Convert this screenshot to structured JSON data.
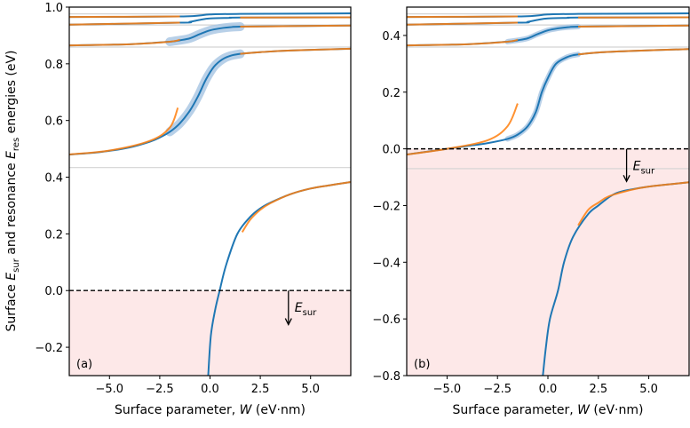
{
  "figure": {
    "ylabel_parts": [
      "Surface ",
      "E",
      "sur",
      " and resonance ",
      "E",
      "res",
      " energies (eV)"
    ],
    "colors": {
      "blue": "#1f77b4",
      "orange": "#ff7f0e",
      "band": "#a6c4e2",
      "shade": "#fde8e8",
      "grey": "#d3d3d3"
    }
  },
  "chart_data": [
    {
      "type": "line",
      "panel_label": "(a)",
      "xlabel": "Surface parameter, W (eV·nm)",
      "xlabel_parts": [
        "Surface parameter, ",
        "W",
        " (eV·nm)"
      ],
      "xlim": [
        -7,
        7
      ],
      "ylim": [
        -0.3,
        1.0
      ],
      "xticks": [
        -5.0,
        -2.5,
        0.0,
        2.5,
        5.0
      ],
      "xtick_labels": [
        "−5.0",
        "−2.5",
        "0.0",
        "2.5",
        "5.0"
      ],
      "yticks": [
        -0.2,
        0.0,
        0.2,
        0.4,
        0.6,
        0.8,
        1.0
      ],
      "ytick_labels": [
        "−0.2",
        "0.0",
        "0.2",
        "0.4",
        "0.6",
        "0.8",
        "1.0"
      ],
      "shaded_below": 0.0,
      "dashed_line": 0.0,
      "grey_lines": [
        0.976,
        0.937,
        0.859,
        0.434
      ],
      "annotation": {
        "text_parts": [
          "E",
          "sur"
        ],
        "x": 3.9,
        "y_from": 0.0,
        "y_to": -0.12
      },
      "series": [
        {
          "color": "blue",
          "band": false,
          "points": [
            [
              -0.09,
              -0.3
            ],
            [
              0.04,
              -0.16
            ],
            [
              0.25,
              -0.07
            ],
            [
              0.48,
              0
            ],
            [
              0.8,
              0.09
            ],
            [
              1.36,
              0.2
            ],
            [
              2,
              0.26
            ],
            [
              2.5,
              0.29
            ],
            [
              3,
              0.31
            ],
            [
              4,
              0.34
            ],
            [
              5,
              0.36
            ],
            [
              6,
              0.372
            ],
            [
              7,
              0.383
            ]
          ]
        },
        {
          "color": "blue",
          "band": true,
          "points": [
            [
              -7,
              0.48
            ],
            [
              -6,
              0.485
            ],
            [
              -5,
              0.493
            ],
            [
              -4,
              0.505
            ],
            [
              -3,
              0.525
            ],
            [
              -2.5,
              0.54
            ],
            [
              -2,
              0.56
            ],
            [
              -1.5,
              0.59
            ],
            [
              -1,
              0.635
            ],
            [
              -0.6,
              0.685
            ],
            [
              -0.2,
              0.745
            ],
            [
              0.2,
              0.79
            ],
            [
              0.6,
              0.815
            ],
            [
              1,
              0.828
            ],
            [
              1.5,
              0.835
            ],
            [
              2.5,
              0.841
            ],
            [
              4,
              0.847
            ],
            [
              7,
              0.853
            ]
          ]
        },
        {
          "color": "blue",
          "band": true,
          "points": [
            [
              -7,
              0.865
            ],
            [
              -4,
              0.869
            ],
            [
              -2,
              0.878
            ],
            [
              -1.5,
              0.883
            ],
            [
              -1,
              0.89
            ],
            [
              -0.5,
              0.905
            ],
            [
              0,
              0.918
            ],
            [
              0.5,
              0.925
            ],
            [
              1,
              0.929
            ],
            [
              1.5,
              0.931
            ],
            [
              4,
              0.933
            ],
            [
              7,
              0.935
            ]
          ]
        },
        {
          "color": "blue",
          "band": false,
          "points": [
            [
              -7,
              0.938
            ],
            [
              -1.5,
              0.945
            ],
            [
              -1,
              0.948
            ],
            [
              -0.5,
              0.955
            ],
            [
              0,
              0.96
            ],
            [
              1,
              0.962
            ],
            [
              1.5,
              0.963
            ],
            [
              7,
              0.964
            ]
          ]
        },
        {
          "color": "blue",
          "band": false,
          "points": [
            [
              -7,
              0.965
            ],
            [
              -1.5,
              0.967
            ],
            [
              0,
              0.974
            ],
            [
              1.5,
              0.976
            ],
            [
              7,
              0.978
            ]
          ]
        },
        {
          "color": "orange",
          "band": false,
          "points": [
            [
              1.6,
              0.206
            ],
            [
              2,
              0.25
            ],
            [
              2.5,
              0.285
            ],
            [
              3,
              0.308
            ],
            [
              4,
              0.34
            ],
            [
              5,
              0.36
            ],
            [
              6,
              0.372
            ],
            [
              7,
              0.383
            ]
          ]
        },
        {
          "color": "orange",
          "band": false,
          "points": [
            [
              -7,
              0.48
            ],
            [
              -5,
              0.494
            ],
            [
              -3,
              0.528
            ],
            [
              -2,
              0.575
            ],
            [
              -1.6,
              0.645
            ]
          ]
        },
        {
          "color": "orange",
          "band": false,
          "points": [
            [
              1.5,
              0.835
            ],
            [
              2.5,
              0.841
            ],
            [
              4,
              0.847
            ],
            [
              7,
              0.853
            ]
          ]
        },
        {
          "color": "orange",
          "band": false,
          "points": [
            [
              -7,
              0.865
            ],
            [
              -4,
              0.869
            ],
            [
              -2,
              0.878
            ],
            [
              -1.5,
              0.885
            ]
          ]
        },
        {
          "color": "orange",
          "band": false,
          "points": [
            [
              1.5,
              0.931
            ],
            [
              4,
              0.933
            ],
            [
              7,
              0.935
            ]
          ]
        },
        {
          "color": "orange",
          "band": false,
          "points": [
            [
              -7,
              0.938
            ],
            [
              -1.5,
              0.945
            ]
          ]
        },
        {
          "color": "orange",
          "band": false,
          "points": [
            [
              1.5,
              0.963
            ],
            [
              7,
              0.964
            ]
          ]
        },
        {
          "color": "orange",
          "band": false,
          "points": [
            [
              -7,
              0.965
            ],
            [
              -1.5,
              0.967
            ]
          ]
        }
      ]
    },
    {
      "type": "line",
      "panel_label": "(b)",
      "xlabel": "Surface parameter, W (eV·nm)",
      "xlabel_parts": [
        "Surface parameter, ",
        "W",
        " (eV·nm)"
      ],
      "xlim": [
        -7,
        7
      ],
      "ylim": [
        -0.8,
        0.5
      ],
      "xticks": [
        -5.0,
        -2.5,
        0.0,
        2.5,
        5.0
      ],
      "xtick_labels": [
        "−5.0",
        "−2.5",
        "0.0",
        "2.5",
        "5.0"
      ],
      "yticks": [
        -0.8,
        -0.6,
        -0.4,
        -0.2,
        0.0,
        0.2,
        0.4
      ],
      "ytick_labels": [
        "−0.8",
        "−0.6",
        "−0.4",
        "−0.2",
        "0.0",
        "0.2",
        "0.4"
      ],
      "shaded_below": 0.0,
      "dashed_line": 0.0,
      "grey_lines": [
        0.476,
        0.437,
        0.359,
        -0.07
      ],
      "annotation": {
        "text_parts": [
          "E",
          "sur"
        ],
        "x": 3.9,
        "y_from": 0.0,
        "y_to": -0.115
      },
      "series": [
        {
          "color": "blue",
          "band": false,
          "points": [
            [
              -0.25,
              -0.8
            ],
            [
              -0.1,
              -0.7
            ],
            [
              0.1,
              -0.6
            ],
            [
              0.5,
              -0.5
            ],
            [
              0.8,
              -0.4
            ],
            [
              1.25,
              -0.31
            ],
            [
              2,
              -0.23
            ],
            [
              2.5,
              -0.2
            ],
            [
              3,
              -0.172
            ],
            [
              3.4,
              -0.156
            ],
            [
              4,
              -0.145
            ],
            [
              5,
              -0.133
            ],
            [
              7,
              -0.118
            ]
          ]
        },
        {
          "color": "blue",
          "band": true,
          "points": [
            [
              -7,
              -0.02
            ],
            [
              -5,
              0
            ],
            [
              -4,
              0.01
            ],
            [
              -3,
              0.02
            ],
            [
              -2,
              0.035
            ],
            [
              -1.5,
              0.05
            ],
            [
              -1,
              0.08
            ],
            [
              -0.6,
              0.13
            ],
            [
              -0.3,
              0.2
            ],
            [
              0,
              0.25
            ],
            [
              0.4,
              0.3
            ],
            [
              1,
              0.325
            ],
            [
              1.5,
              0.333
            ],
            [
              2.5,
              0.34
            ],
            [
              4,
              0.345
            ],
            [
              7,
              0.352
            ]
          ]
        },
        {
          "color": "blue",
          "band": true,
          "points": [
            [
              -7,
              0.365
            ],
            [
              -4,
              0.369
            ],
            [
              -2,
              0.378
            ],
            [
              -1.5,
              0.383
            ],
            [
              -1,
              0.39
            ],
            [
              -0.5,
              0.405
            ],
            [
              0,
              0.418
            ],
            [
              0.5,
              0.425
            ],
            [
              1,
              0.429
            ],
            [
              1.5,
              0.431
            ],
            [
              4,
              0.433
            ],
            [
              7,
              0.435
            ]
          ]
        },
        {
          "color": "blue",
          "band": false,
          "points": [
            [
              -7,
              0.438
            ],
            [
              -1.5,
              0.445
            ],
            [
              -1,
              0.448
            ],
            [
              -0.5,
              0.455
            ],
            [
              0,
              0.46
            ],
            [
              1,
              0.462
            ],
            [
              1.5,
              0.463
            ],
            [
              7,
              0.464
            ]
          ]
        },
        {
          "color": "blue",
          "band": false,
          "points": [
            [
              -7,
              0.465
            ],
            [
              -1.5,
              0.467
            ],
            [
              0,
              0.474
            ],
            [
              1.5,
              0.476
            ],
            [
              7,
              0.478
            ]
          ]
        },
        {
          "color": "orange",
          "band": false,
          "points": [
            [
              1.5,
              -0.27
            ],
            [
              2,
              -0.215
            ],
            [
              2.5,
              -0.19
            ],
            [
              3,
              -0.168
            ],
            [
              4,
              -0.147
            ],
            [
              5,
              -0.133
            ],
            [
              7,
              -0.118
            ]
          ]
        },
        {
          "color": "orange",
          "band": false,
          "points": [
            [
              -7,
              -0.02
            ],
            [
              -5,
              0
            ],
            [
              -3,
              0.03
            ],
            [
              -2,
              0.08
            ],
            [
              -1.5,
              0.16
            ]
          ]
        },
        {
          "color": "orange",
          "band": false,
          "points": [
            [
              1.5,
              0.333
            ],
            [
              2.5,
              0.34
            ],
            [
              4,
              0.345
            ],
            [
              7,
              0.352
            ]
          ]
        },
        {
          "color": "orange",
          "band": false,
          "points": [
            [
              -7,
              0.365
            ],
            [
              -4,
              0.369
            ],
            [
              -2,
              0.378
            ],
            [
              -1.5,
              0.385
            ]
          ]
        },
        {
          "color": "orange",
          "band": false,
          "points": [
            [
              1.5,
              0.431
            ],
            [
              4,
              0.433
            ],
            [
              7,
              0.435
            ]
          ]
        },
        {
          "color": "orange",
          "band": false,
          "points": [
            [
              -7,
              0.438
            ],
            [
              -1.5,
              0.445
            ]
          ]
        },
        {
          "color": "orange",
          "band": false,
          "points": [
            [
              1.5,
              0.463
            ],
            [
              7,
              0.464
            ]
          ]
        },
        {
          "color": "orange",
          "band": false,
          "points": [
            [
              -7,
              0.465
            ],
            [
              -1.5,
              0.467
            ]
          ]
        }
      ]
    }
  ]
}
